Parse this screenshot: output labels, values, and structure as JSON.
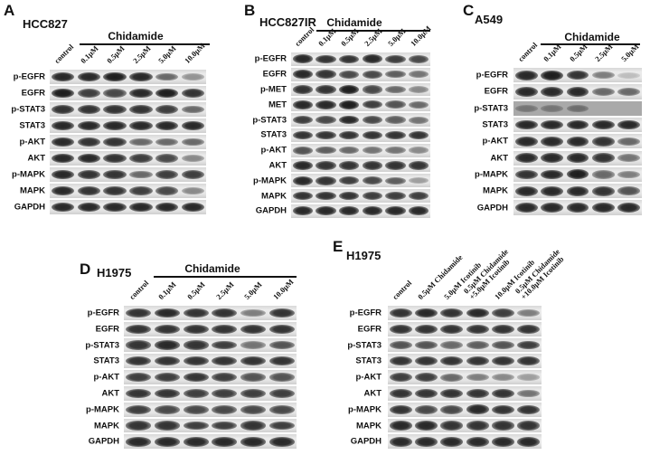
{
  "panels": [
    {
      "letter": "A",
      "cell_line": "HCC827",
      "treatment_label": "Chidamide",
      "lanes": [
        "control",
        "0.1μM",
        "0.5μM",
        "2.5μM",
        "5.0μM",
        "10.0μM"
      ],
      "rows": [
        {
          "label": "p-EGFR",
          "intensity": [
            0.9,
            0.9,
            0.95,
            0.9,
            0.6,
            0.4
          ]
        },
        {
          "label": "EGFR",
          "intensity": [
            0.95,
            0.8,
            0.75,
            0.9,
            0.95,
            0.85
          ]
        },
        {
          "label": "p-STAT3",
          "intensity": [
            0.85,
            0.85,
            0.85,
            0.85,
            0.8,
            0.6
          ]
        },
        {
          "label": "STAT3",
          "intensity": [
            0.9,
            0.9,
            0.9,
            0.9,
            0.9,
            0.9
          ]
        },
        {
          "label": "p-AKT",
          "intensity": [
            0.9,
            0.85,
            0.85,
            0.6,
            0.6,
            0.6
          ]
        },
        {
          "label": "AKT",
          "intensity": [
            0.9,
            0.9,
            0.85,
            0.8,
            0.75,
            0.45
          ]
        },
        {
          "label": "p-MAPK",
          "intensity": [
            0.9,
            0.85,
            0.85,
            0.6,
            0.8,
            0.8
          ]
        },
        {
          "label": "MAPK",
          "intensity": [
            0.9,
            0.85,
            0.85,
            0.8,
            0.75,
            0.45
          ]
        },
        {
          "label": "GAPDH",
          "intensity": [
            0.9,
            0.9,
            0.9,
            0.9,
            0.9,
            0.9
          ]
        }
      ]
    },
    {
      "letter": "B",
      "cell_line": "HCC827IR",
      "treatment_label": "Chidamide",
      "lanes": [
        "control",
        "0.1μM",
        "0.5μM",
        "2.5μM",
        "5.0μM",
        "10.0μM"
      ],
      "rows": [
        {
          "label": "p-EGFR",
          "intensity": [
            0.9,
            0.85,
            0.85,
            0.9,
            0.8,
            0.75
          ]
        },
        {
          "label": "EGFR",
          "intensity": [
            0.9,
            0.85,
            0.75,
            0.75,
            0.65,
            0.55
          ]
        },
        {
          "label": "p-MET",
          "intensity": [
            0.85,
            0.85,
            0.95,
            0.75,
            0.6,
            0.45
          ]
        },
        {
          "label": "MET",
          "intensity": [
            0.9,
            0.9,
            0.95,
            0.8,
            0.7,
            0.6
          ]
        },
        {
          "label": "p-STAT3",
          "intensity": [
            0.8,
            0.75,
            0.9,
            0.75,
            0.65,
            0.55
          ]
        },
        {
          "label": "STAT3",
          "intensity": [
            0.85,
            0.85,
            0.85,
            0.85,
            0.85,
            0.85
          ]
        },
        {
          "label": "p-AKT",
          "intensity": [
            0.7,
            0.65,
            0.6,
            0.55,
            0.55,
            0.45
          ]
        },
        {
          "label": "AKT",
          "intensity": [
            0.9,
            0.85,
            0.85,
            0.85,
            0.85,
            0.85
          ]
        },
        {
          "label": "p-MAPK",
          "intensity": [
            0.9,
            0.85,
            0.8,
            0.75,
            0.65,
            0.35
          ]
        },
        {
          "label": "MAPK",
          "intensity": [
            0.85,
            0.85,
            0.85,
            0.8,
            0.8,
            0.8
          ]
        },
        {
          "label": "GAPDH",
          "intensity": [
            0.9,
            0.9,
            0.9,
            0.9,
            0.9,
            0.9
          ]
        }
      ]
    },
    {
      "letter": "C",
      "cell_line": "A549",
      "treatment_label": "Chidamide",
      "lanes": [
        "control",
        "0.1μM",
        "0.5μM",
        "2.5μM",
        "5.0μM"
      ],
      "rows": [
        {
          "label": "p-EGFR",
          "intensity": [
            0.9,
            0.95,
            0.85,
            0.5,
            0.2
          ]
        },
        {
          "label": "EGFR",
          "intensity": [
            0.9,
            0.9,
            0.9,
            0.6,
            0.6
          ]
        },
        {
          "label": "p-STAT3",
          "intensity": [
            0.35,
            0.35,
            0.4,
            0,
            0
          ]
        },
        {
          "label": "STAT3",
          "intensity": [
            0.9,
            0.9,
            0.9,
            0.9,
            0.9
          ]
        },
        {
          "label": "p-AKT",
          "intensity": [
            0.9,
            0.9,
            0.9,
            0.85,
            0.6
          ]
        },
        {
          "label": "AKT",
          "intensity": [
            0.9,
            0.9,
            0.9,
            0.85,
            0.55
          ]
        },
        {
          "label": "p-MAPK",
          "intensity": [
            0.85,
            0.9,
            0.95,
            0.6,
            0.5
          ]
        },
        {
          "label": "MAPK",
          "intensity": [
            0.9,
            0.9,
            0.9,
            0.85,
            0.7
          ]
        },
        {
          "label": "GAPDH",
          "intensity": [
            0.9,
            0.9,
            0.9,
            0.9,
            0.9
          ]
        }
      ]
    },
    {
      "letter": "D",
      "cell_line": "H1975",
      "treatment_label": "Chidamide",
      "lanes": [
        "control",
        "0.1μM",
        "0.5μM",
        "2.5μM",
        "5.0μM",
        "10.0μM"
      ],
      "rows": [
        {
          "label": "p-EGFR",
          "intensity": [
            0.85,
            0.9,
            0.85,
            0.85,
            0.5,
            0.85
          ]
        },
        {
          "label": "EGFR",
          "intensity": [
            0.85,
            0.85,
            0.85,
            0.85,
            0.85,
            0.85
          ]
        },
        {
          "label": "p-STAT3",
          "intensity": [
            0.85,
            0.9,
            0.85,
            0.8,
            0.55,
            0.7
          ]
        },
        {
          "label": "STAT3",
          "intensity": [
            0.85,
            0.85,
            0.85,
            0.85,
            0.85,
            0.85
          ]
        },
        {
          "label": "p-AKT",
          "intensity": [
            0.8,
            0.8,
            0.85,
            0.8,
            0.7,
            0.7
          ]
        },
        {
          "label": "AKT",
          "intensity": [
            0.85,
            0.85,
            0.8,
            0.8,
            0.8,
            0.8
          ]
        },
        {
          "label": "p-MAPK",
          "intensity": [
            0.8,
            0.75,
            0.75,
            0.75,
            0.75,
            0.75
          ]
        },
        {
          "label": "MAPK",
          "intensity": [
            0.85,
            0.85,
            0.8,
            0.8,
            0.85,
            0.8
          ]
        },
        {
          "label": "GAPDH",
          "intensity": [
            0.9,
            0.9,
            0.9,
            0.9,
            0.9,
            0.9
          ]
        }
      ]
    },
    {
      "letter": "E",
      "cell_line": "H1975",
      "treatment_label": "",
      "lanes": [
        "control",
        "0.5μM Chidamide",
        "5.0μM Icotinib",
        "0.5μM Chidamide\n+5.0μM Icotinib",
        "10.0μM Icotinib",
        "0.5μM Chidamide\n+10.0μM Icotinib"
      ],
      "rows": [
        {
          "label": "p-EGFR",
          "intensity": [
            0.85,
            0.9,
            0.85,
            0.9,
            0.8,
            0.5
          ]
        },
        {
          "label": "EGFR",
          "intensity": [
            0.85,
            0.85,
            0.85,
            0.85,
            0.85,
            0.85
          ]
        },
        {
          "label": "p-STAT3",
          "intensity": [
            0.7,
            0.7,
            0.6,
            0.65,
            0.7,
            0.8
          ]
        },
        {
          "label": "STAT3",
          "intensity": [
            0.85,
            0.85,
            0.85,
            0.85,
            0.85,
            0.85
          ]
        },
        {
          "label": "p-AKT",
          "intensity": [
            0.8,
            0.8,
            0.6,
            0.5,
            0.45,
            0.35
          ]
        },
        {
          "label": "AKT",
          "intensity": [
            0.85,
            0.85,
            0.85,
            0.85,
            0.85,
            0.55
          ]
        },
        {
          "label": "p-MAPK",
          "intensity": [
            0.85,
            0.75,
            0.75,
            0.9,
            0.85,
            0.85
          ]
        },
        {
          "label": "MAPK",
          "intensity": [
            0.9,
            0.9,
            0.85,
            0.85,
            0.85,
            0.85
          ]
        },
        {
          "label": "GAPDH",
          "intensity": [
            0.9,
            0.9,
            0.9,
            0.9,
            0.9,
            0.9
          ]
        }
      ]
    }
  ]
}
